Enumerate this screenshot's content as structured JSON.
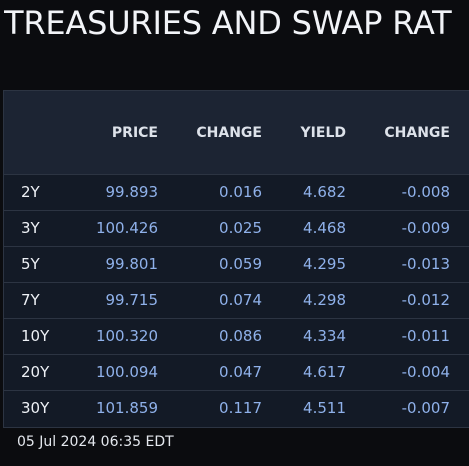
{
  "page": {
    "title": "TREASURIES AND SWAP RAT"
  },
  "table": {
    "columns": [
      "",
      "PRICE",
      "CHANGE",
      "YIELD",
      "CHANGE"
    ],
    "rows": [
      {
        "tenor": "2Y",
        "price": "99.893",
        "price_change": "0.016",
        "yield": "4.682",
        "yield_change": "-0.008"
      },
      {
        "tenor": "3Y",
        "price": "100.426",
        "price_change": "0.025",
        "yield": "4.468",
        "yield_change": "-0.009"
      },
      {
        "tenor": "5Y",
        "price": "99.801",
        "price_change": "0.059",
        "yield": "4.295",
        "yield_change": "-0.013"
      },
      {
        "tenor": "7Y",
        "price": "99.715",
        "price_change": "0.074",
        "yield": "4.298",
        "yield_change": "-0.012"
      },
      {
        "tenor": "10Y",
        "price": "100.320",
        "price_change": "0.086",
        "yield": "4.334",
        "yield_change": "-0.011"
      },
      {
        "tenor": "20Y",
        "price": "100.094",
        "price_change": "0.047",
        "yield": "4.617",
        "yield_change": "-0.004"
      },
      {
        "tenor": "30Y",
        "price": "101.859",
        "price_change": "0.117",
        "yield": "4.511",
        "yield_change": "-0.007"
      }
    ]
  },
  "footer": {
    "timestamp": "05 Jul 2024 06:35 EDT"
  },
  "colors": {
    "background": "#0b0c0f",
    "panel": "#131a26",
    "header": "#1c2433",
    "value_text": "#8fb1ea",
    "label_text": "#eef1f6"
  }
}
